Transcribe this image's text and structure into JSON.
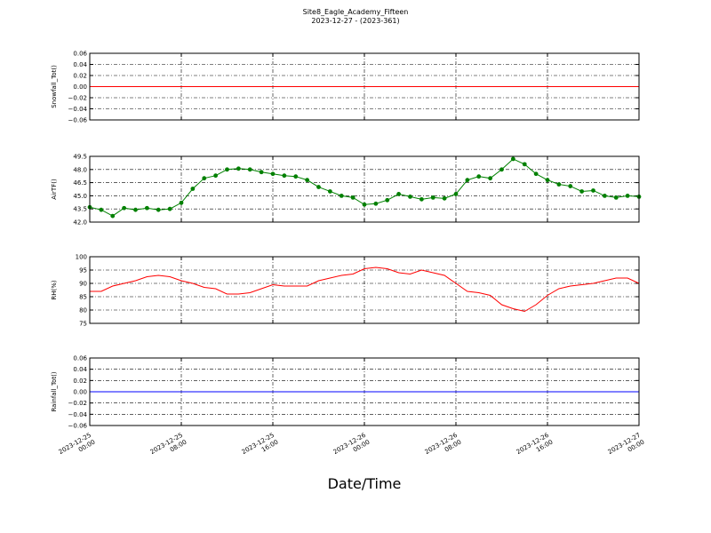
{
  "title": "Site8_Eagle_Academy_Fifteen",
  "subtitle": "2023-12-27 - (2023-361)",
  "xlabel": "Date/Time",
  "xlim": [
    "2023-12-25 00:00",
    "2023-12-27 00:00"
  ],
  "xticks": [
    "2023-12-25 00:00",
    "2023-12-25 08:00",
    "2023-12-25 16:00",
    "2023-12-26 00:00",
    "2023-12-26 08:00",
    "2023-12-26 16:00",
    "2023-12-27 00:00"
  ],
  "grid": true,
  "chart_data": [
    {
      "type": "line",
      "ylabel": "Snowfall_Tot()",
      "ylim": [
        -0.06,
        0.06
      ],
      "yticks": [
        {
          "value": -0.06,
          "label": "−0.06"
        },
        {
          "value": -0.04,
          "label": "−0.04"
        },
        {
          "value": -0.02,
          "label": "−0.02"
        },
        {
          "value": 0,
          "label": "0.00"
        },
        {
          "value": 0.02,
          "label": "0.02"
        },
        {
          "value": 0.04,
          "label": "0.04"
        },
        {
          "value": 0.06,
          "label": "0.06"
        }
      ],
      "x": [
        "2023-12-25 00:00",
        "2023-12-27 00:00"
      ],
      "series": [
        {
          "color": "#ff0000",
          "values": [
            0,
            0
          ]
        }
      ]
    },
    {
      "type": "line",
      "ylabel": "AirTF()",
      "ylim": [
        42,
        49.5
      ],
      "marker": "o",
      "yticks": [
        {
          "value": 42,
          "label": "42.0"
        },
        43.5,
        {
          "value": 45,
          "label": "45.0"
        },
        46.5,
        {
          "value": 48,
          "label": "48.0"
        },
        49.5
      ],
      "x": [
        "2023-12-25 00:00",
        "2023-12-25 01:00",
        "2023-12-25 02:00",
        "2023-12-25 03:00",
        "2023-12-25 04:00",
        "2023-12-25 05:00",
        "2023-12-25 06:00",
        "2023-12-25 07:00",
        "2023-12-25 08:00",
        "2023-12-25 09:00",
        "2023-12-25 10:00",
        "2023-12-25 11:00",
        "2023-12-25 12:00",
        "2023-12-25 13:00",
        "2023-12-25 14:00",
        "2023-12-25 15:00",
        "2023-12-25 16:00",
        "2023-12-25 17:00",
        "2023-12-25 18:00",
        "2023-12-25 19:00",
        "2023-12-25 20:00",
        "2023-12-25 21:00",
        "2023-12-25 22:00",
        "2023-12-25 23:00",
        "2023-12-26 00:00",
        "2023-12-26 01:00",
        "2023-12-26 02:00",
        "2023-12-26 03:00",
        "2023-12-26 04:00",
        "2023-12-26 05:00",
        "2023-12-26 06:00",
        "2023-12-26 07:00",
        "2023-12-26 08:00",
        "2023-12-26 09:00",
        "2023-12-26 10:00",
        "2023-12-26 11:00",
        "2023-12-26 12:00",
        "2023-12-26 13:00",
        "2023-12-26 14:00",
        "2023-12-26 15:00",
        "2023-12-26 16:00",
        "2023-12-26 17:00",
        "2023-12-26 18:00",
        "2023-12-26 19:00",
        "2023-12-26 20:00",
        "2023-12-26 21:00",
        "2023-12-26 22:00",
        "2023-12-26 23:00",
        "2023-12-27 00:00"
      ],
      "series": [
        {
          "color": "#008000",
          "values": [
            43.7,
            43.4,
            42.7,
            43.6,
            43.4,
            43.6,
            43.4,
            43.5,
            44.2,
            45.8,
            47.0,
            47.3,
            48.0,
            48.1,
            48.0,
            47.7,
            47.5,
            47.3,
            47.2,
            46.8,
            46.0,
            45.5,
            45.0,
            44.8,
            44.0,
            44.1,
            44.5,
            45.2,
            44.9,
            44.6,
            44.8,
            44.7,
            45.2,
            46.8,
            47.2,
            47.0,
            48.0,
            49.2,
            48.6,
            47.5,
            46.8,
            46.3,
            46.1,
            45.5,
            45.6,
            45.0,
            44.8,
            45.0,
            44.9
          ]
        }
      ]
    },
    {
      "type": "line",
      "ylabel": "RH(%)",
      "ylim": [
        75,
        100
      ],
      "yticks": [
        75,
        80,
        85,
        90,
        95,
        100
      ],
      "x": [
        "2023-12-25 00:00",
        "2023-12-25 01:00",
        "2023-12-25 02:00",
        "2023-12-25 03:00",
        "2023-12-25 04:00",
        "2023-12-25 05:00",
        "2023-12-25 06:00",
        "2023-12-25 07:00",
        "2023-12-25 08:00",
        "2023-12-25 09:00",
        "2023-12-25 10:00",
        "2023-12-25 11:00",
        "2023-12-25 12:00",
        "2023-12-25 13:00",
        "2023-12-25 14:00",
        "2023-12-25 15:00",
        "2023-12-25 16:00",
        "2023-12-25 17:00",
        "2023-12-25 18:00",
        "2023-12-25 19:00",
        "2023-12-25 20:00",
        "2023-12-25 21:00",
        "2023-12-25 22:00",
        "2023-12-25 23:00",
        "2023-12-26 00:00",
        "2023-12-26 01:00",
        "2023-12-26 02:00",
        "2023-12-26 03:00",
        "2023-12-26 04:00",
        "2023-12-26 05:00",
        "2023-12-26 06:00",
        "2023-12-26 07:00",
        "2023-12-26 08:00",
        "2023-12-26 09:00",
        "2023-12-26 10:00",
        "2023-12-26 11:00",
        "2023-12-26 12:00",
        "2023-12-26 13:00",
        "2023-12-26 14:00",
        "2023-12-26 15:00",
        "2023-12-26 16:00",
        "2023-12-26 17:00",
        "2023-12-26 18:00",
        "2023-12-26 19:00",
        "2023-12-26 20:00",
        "2023-12-26 21:00",
        "2023-12-26 22:00",
        "2023-12-26 23:00",
        "2023-12-27 00:00"
      ],
      "series": [
        {
          "color": "#ff0000",
          "values": [
            87,
            87,
            89,
            90,
            91,
            92.5,
            93,
            92.5,
            91,
            90,
            88.5,
            88,
            86,
            86,
            86.5,
            88,
            89.5,
            89,
            89,
            89,
            91,
            92,
            93,
            93.5,
            95.5,
            96,
            95.5,
            94,
            93.5,
            95,
            94,
            93,
            90,
            87,
            86.5,
            85.5,
            82,
            80.5,
            79.5,
            82,
            85.5,
            88,
            89,
            89.5,
            90,
            91,
            92,
            92,
            90
          ]
        }
      ]
    },
    {
      "type": "line",
      "ylabel": "Rainfall_Tot()",
      "ylim": [
        -0.06,
        0.06
      ],
      "yticks": [
        {
          "value": -0.06,
          "label": "−0.06"
        },
        {
          "value": -0.04,
          "label": "−0.04"
        },
        {
          "value": -0.02,
          "label": "−0.02"
        },
        {
          "value": 0,
          "label": "0.00"
        },
        {
          "value": 0.02,
          "label": "0.02"
        },
        {
          "value": 0.04,
          "label": "0.04"
        },
        {
          "value": 0.06,
          "label": "0.06"
        }
      ],
      "x": [
        "2023-12-25 00:00",
        "2023-12-27 00:00"
      ],
      "series": [
        {
          "color": "#0000ff",
          "values": [
            0,
            0
          ]
        }
      ]
    }
  ]
}
